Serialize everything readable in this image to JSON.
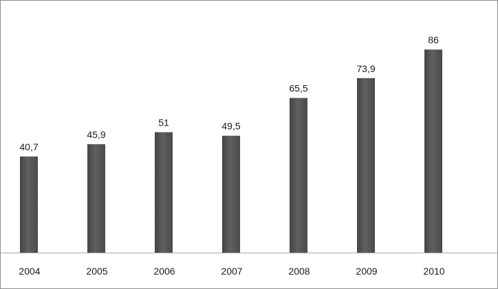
{
  "chart_data": {
    "type": "bar",
    "title": "",
    "xlabel": "",
    "ylabel": "",
    "categories": [
      "2004",
      "2005",
      "2006",
      "2007",
      "2008",
      "2009",
      "2010"
    ],
    "values": [
      40.7,
      45.9,
      51,
      49.5,
      65.5,
      73.9,
      86
    ],
    "data_labels": [
      "40,7",
      "45,9",
      "51",
      "49,5",
      "65,5",
      "73,9",
      "86"
    ],
    "ylim": [
      0,
      100
    ],
    "grid": false,
    "legend": "none",
    "colors": {
      "bar": "#595959",
      "bar_shade": "#404040",
      "axis": "#a6a6a6",
      "text": "#1a1a1a",
      "border": "#8c8c8c"
    }
  }
}
